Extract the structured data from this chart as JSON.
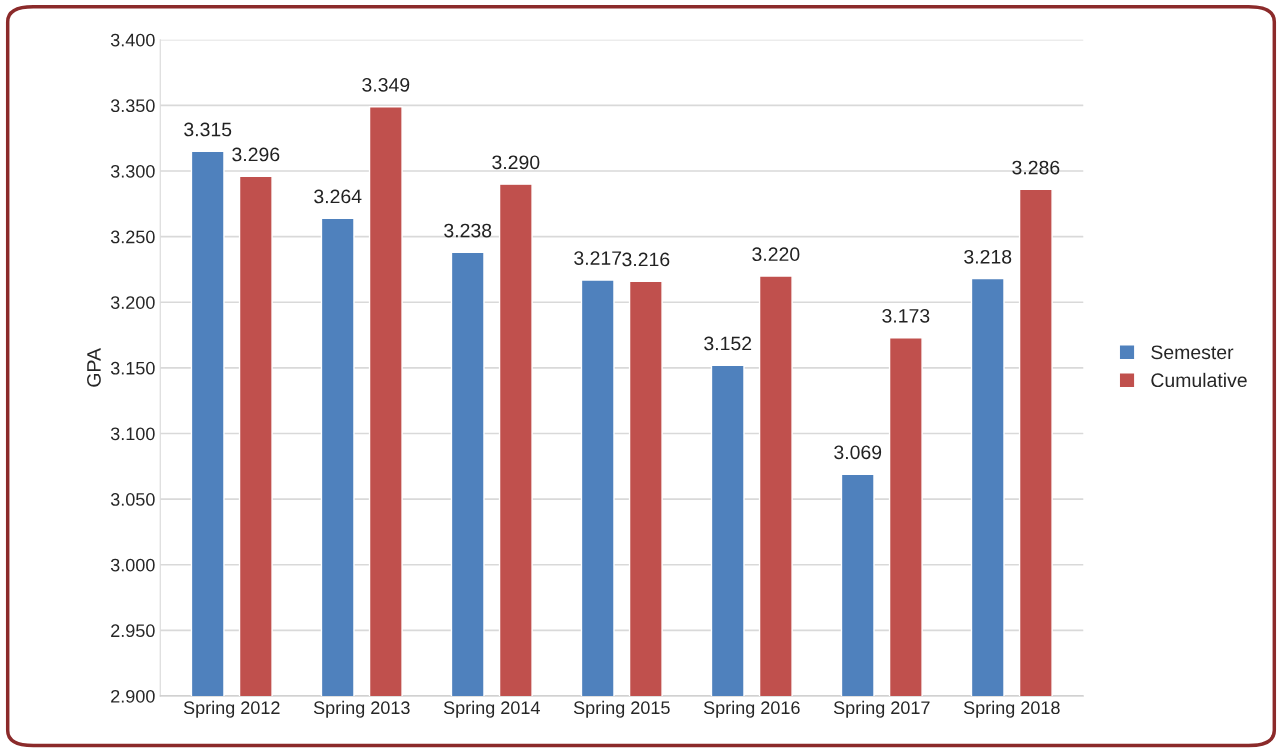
{
  "chart_data": {
    "type": "bar",
    "ylabel": "GPA",
    "categories": [
      "Spring 2012",
      "Spring 2013",
      "Spring 2014",
      "Spring 2015",
      "Spring 2016",
      "Spring 2017",
      "Spring 2018"
    ],
    "series": [
      {
        "name": "Semester",
        "color": "#4f81bd",
        "values": [
          3.315,
          3.264,
          3.238,
          3.217,
          3.152,
          3.069,
          3.218
        ],
        "value_labels": [
          "3.315",
          "3.264",
          "3.238",
          "3.217",
          "3.152",
          "3.069",
          "3.218"
        ]
      },
      {
        "name": "Cumulative",
        "color": "#c0504d",
        "values": [
          3.296,
          3.349,
          3.29,
          3.216,
          3.22,
          3.173,
          3.286
        ],
        "value_labels": [
          "3.296",
          "3.349",
          "3.290",
          "3.216",
          "3.220",
          "3.173",
          "3.286"
        ]
      }
    ],
    "ylim": [
      2.9,
      3.4
    ],
    "yticks": [
      {
        "value": 2.9,
        "label": "2.900"
      },
      {
        "value": 2.95,
        "label": "2.950"
      },
      {
        "value": 3.0,
        "label": "3.000"
      },
      {
        "value": 3.05,
        "label": "3.050"
      },
      {
        "value": 3.1,
        "label": "3.100"
      },
      {
        "value": 3.15,
        "label": "3.150"
      },
      {
        "value": 3.2,
        "label": "3.200"
      },
      {
        "value": 3.25,
        "label": "3.250"
      },
      {
        "value": 3.3,
        "label": "3.300"
      },
      {
        "value": 3.35,
        "label": "3.350"
      },
      {
        "value": 3.4,
        "label": "3.400"
      }
    ],
    "grid": "y",
    "legend": "right"
  }
}
